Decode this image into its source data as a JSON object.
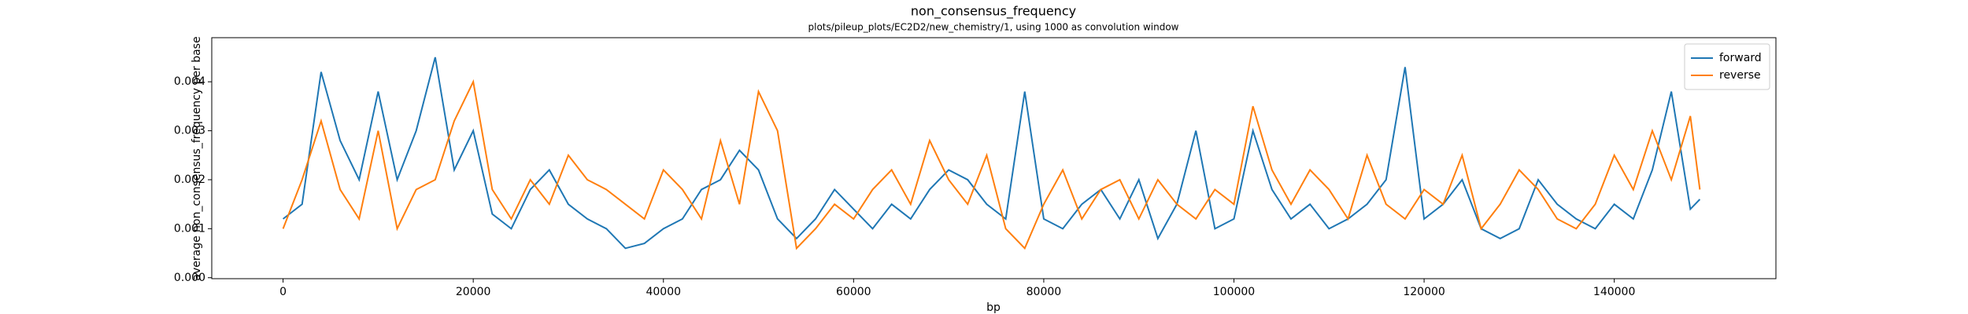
{
  "chart_data": {
    "type": "line",
    "title": "non_consensus_frequency",
    "subtitle": "plots/pileup_plots/EC2D2/new_chemistry/1, using 1000 as convolution window",
    "xlabel": "bp",
    "ylabel": "average non_consensus_frequency per base",
    "x": [
      0,
      2000,
      4000,
      6000,
      8000,
      10000,
      12000,
      14000,
      16000,
      18000,
      20000,
      22000,
      24000,
      26000,
      28000,
      30000,
      32000,
      34000,
      36000,
      38000,
      40000,
      42000,
      44000,
      46000,
      48000,
      50000,
      52000,
      54000,
      56000,
      58000,
      60000,
      62000,
      64000,
      66000,
      68000,
      70000,
      72000,
      74000,
      76000,
      78000,
      80000,
      82000,
      84000,
      86000,
      88000,
      90000,
      92000,
      94000,
      96000,
      98000,
      100000,
      102000,
      104000,
      106000,
      108000,
      110000,
      112000,
      114000,
      116000,
      118000,
      120000,
      122000,
      124000,
      126000,
      128000,
      130000,
      132000,
      134000,
      136000,
      138000,
      140000,
      142000,
      144000,
      146000,
      148000,
      149000
    ],
    "series": [
      {
        "name": "forward",
        "color": "#1f77b4",
        "values": [
          0.0012,
          0.0015,
          0.0042,
          0.0028,
          0.002,
          0.0038,
          0.002,
          0.003,
          0.0045,
          0.0022,
          0.003,
          0.0013,
          0.001,
          0.0018,
          0.0022,
          0.0015,
          0.0012,
          0.001,
          0.0006,
          0.0007,
          0.001,
          0.0012,
          0.0018,
          0.002,
          0.0026,
          0.0022,
          0.0012,
          0.0008,
          0.0012,
          0.0018,
          0.0014,
          0.001,
          0.0015,
          0.0012,
          0.0018,
          0.0022,
          0.002,
          0.0015,
          0.0012,
          0.0038,
          0.0012,
          0.001,
          0.0015,
          0.0018,
          0.0012,
          0.002,
          0.0008,
          0.0015,
          0.003,
          0.001,
          0.0012,
          0.003,
          0.0018,
          0.0012,
          0.0015,
          0.001,
          0.0012,
          0.0015,
          0.002,
          0.0043,
          0.0012,
          0.0015,
          0.002,
          0.001,
          0.0008,
          0.001,
          0.002,
          0.0015,
          0.0012,
          0.001,
          0.0015,
          0.0012,
          0.0022,
          0.0038,
          0.0014,
          0.0016
        ]
      },
      {
        "name": "reverse",
        "color": "#ff7f0e",
        "values": [
          0.001,
          0.002,
          0.0032,
          0.0018,
          0.0012,
          0.003,
          0.001,
          0.0018,
          0.002,
          0.0032,
          0.004,
          0.0018,
          0.0012,
          0.002,
          0.0015,
          0.0025,
          0.002,
          0.0018,
          0.0015,
          0.0012,
          0.0022,
          0.0018,
          0.0012,
          0.0028,
          0.0015,
          0.0038,
          0.003,
          0.0006,
          0.001,
          0.0015,
          0.0012,
          0.0018,
          0.0022,
          0.0015,
          0.0028,
          0.002,
          0.0015,
          0.0025,
          0.001,
          0.0006,
          0.0015,
          0.0022,
          0.0012,
          0.0018,
          0.002,
          0.0012,
          0.002,
          0.0015,
          0.0012,
          0.0018,
          0.0015,
          0.0035,
          0.0022,
          0.0015,
          0.0022,
          0.0018,
          0.0012,
          0.0025,
          0.0015,
          0.0012,
          0.0018,
          0.0015,
          0.0025,
          0.001,
          0.0015,
          0.0022,
          0.0018,
          0.0012,
          0.001,
          0.0015,
          0.0025,
          0.0018,
          0.003,
          0.002,
          0.0033,
          0.0018
        ]
      }
    ],
    "xlim": [
      -7500,
      157000
    ],
    "xticks": [
      0,
      20000,
      40000,
      60000,
      80000,
      100000,
      120000,
      140000
    ],
    "ylim": [
      -2e-05,
      0.0049
    ],
    "yticks": [
      {
        "value": 0,
        "label": "0.000"
      },
      {
        "value": 0.001,
        "label": "0.001"
      },
      {
        "value": 0.002,
        "label": "0.002"
      },
      {
        "value": 0.003,
        "label": "0.003"
      },
      {
        "value": 0.004,
        "label": "0.004"
      }
    ],
    "legend": "upper right"
  }
}
